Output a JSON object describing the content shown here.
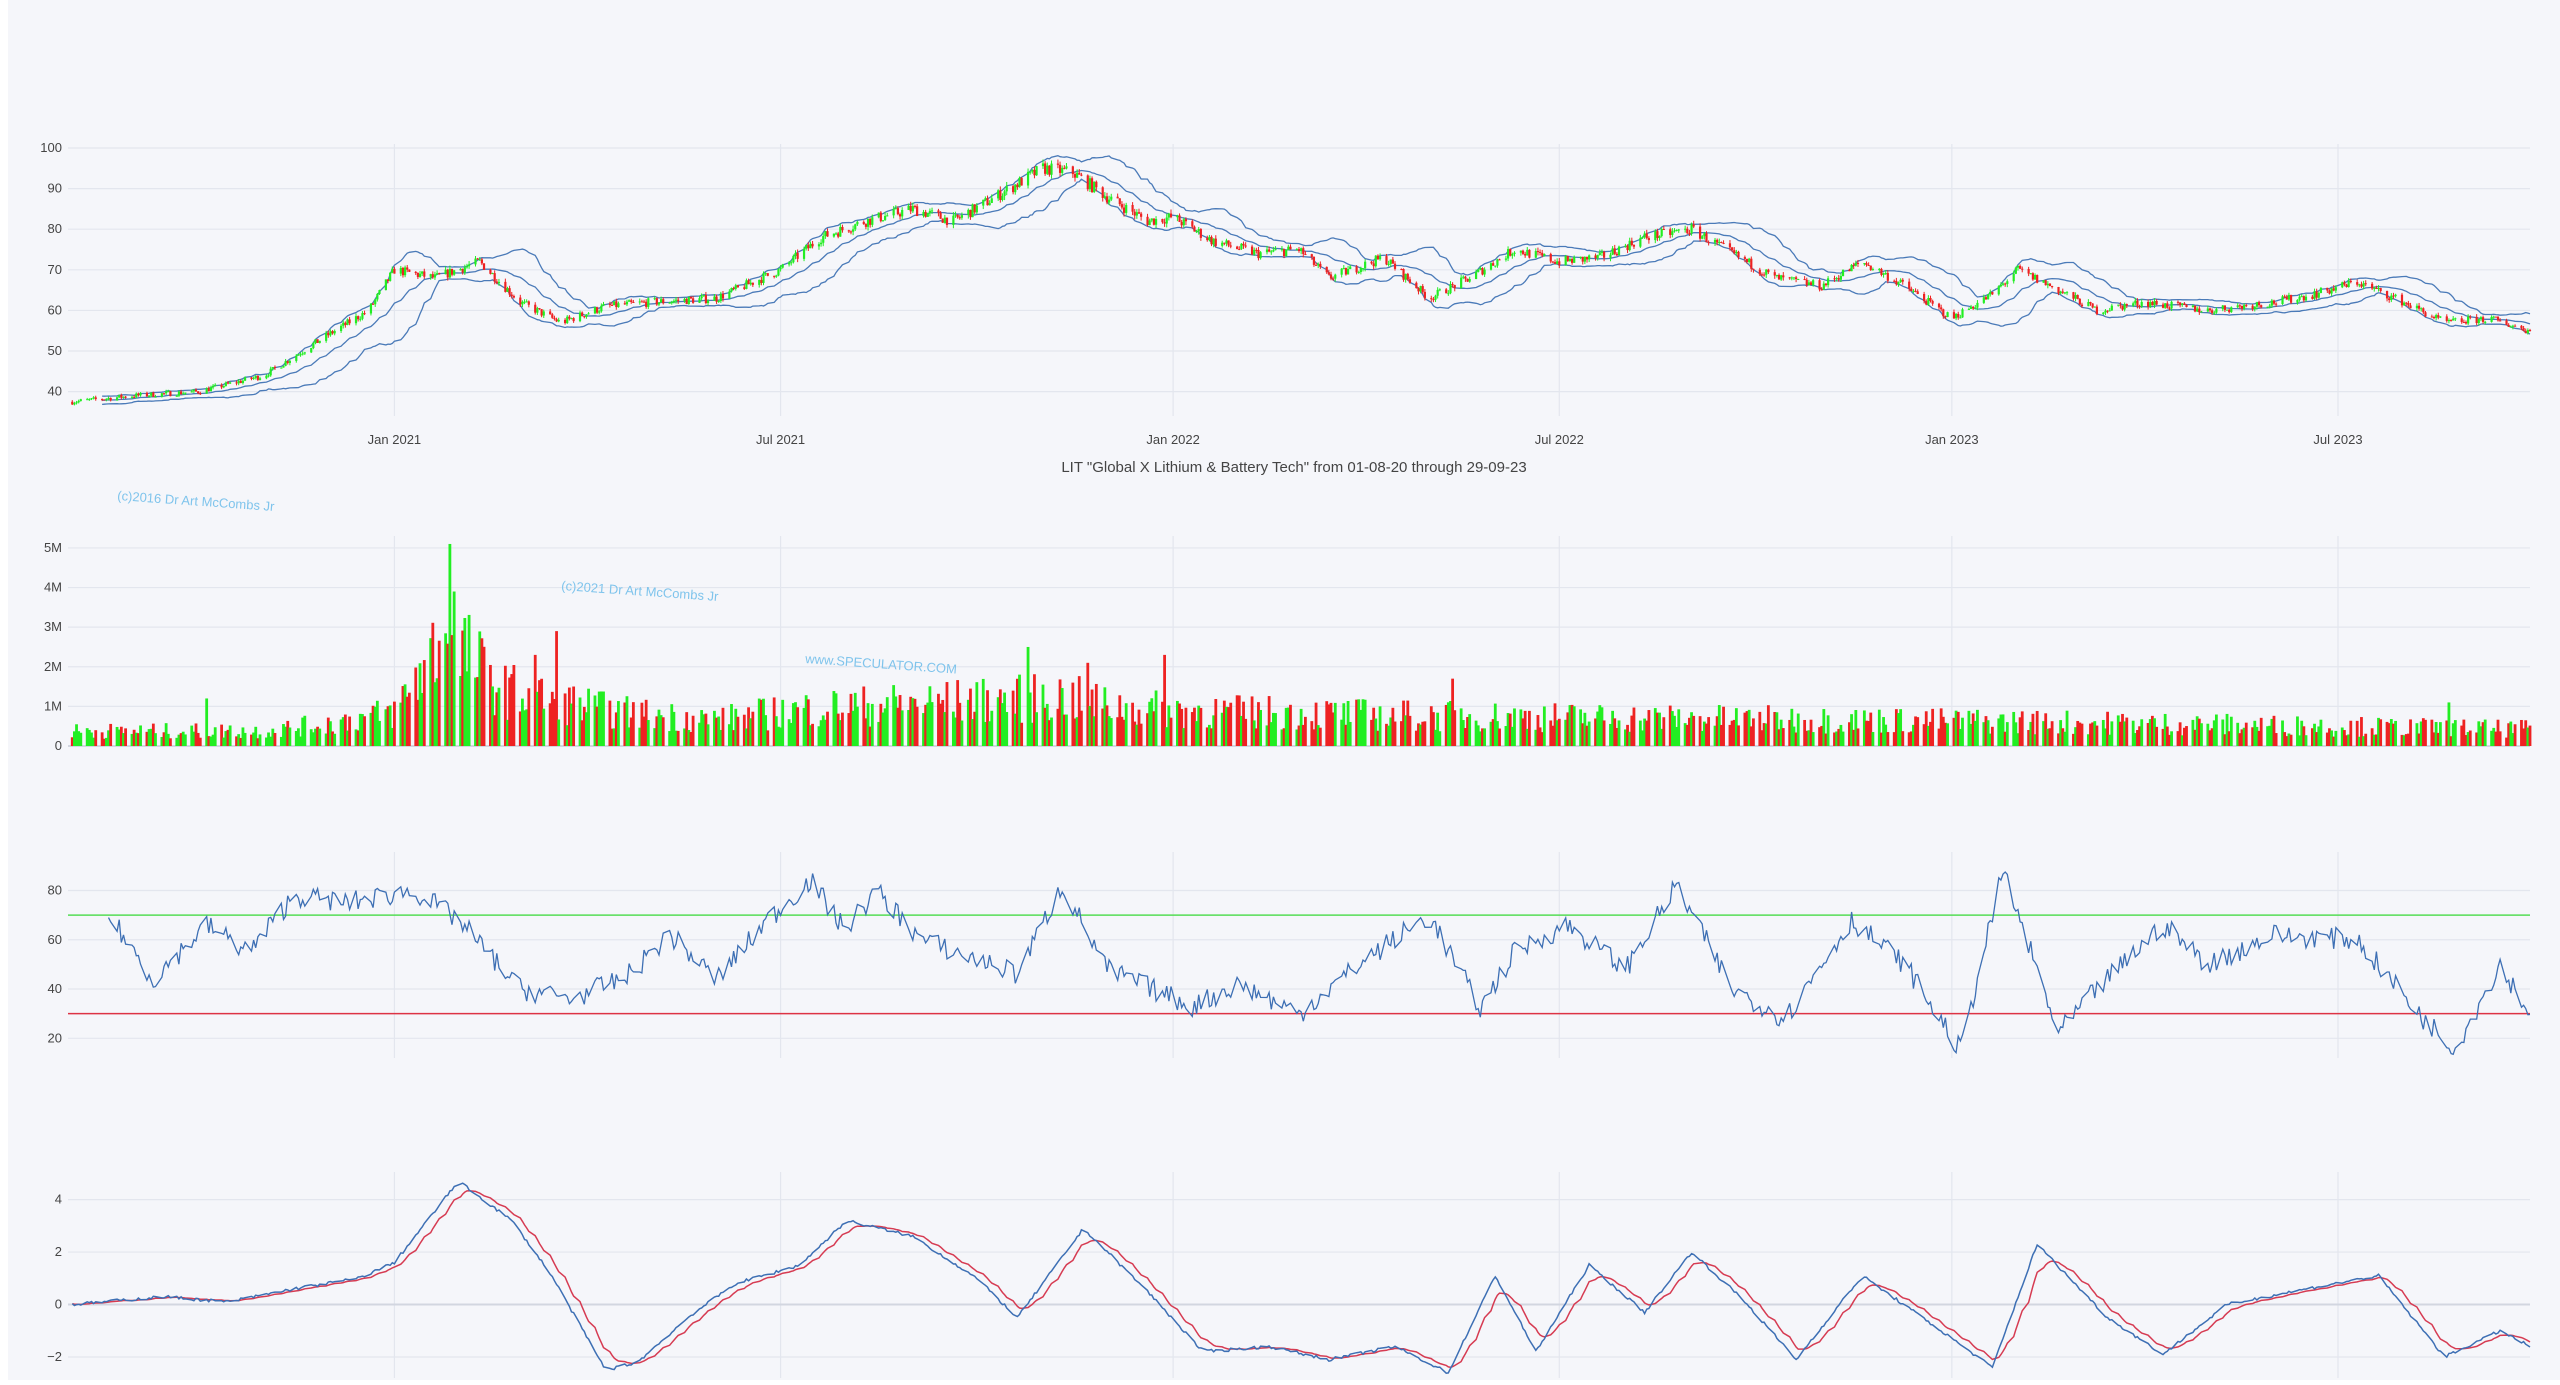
{
  "chart_data": [
    {
      "panel": "price",
      "type": "candlestick",
      "title": "LIT \"Global X Lithium & Battery Tech\" from 01-08-20 through 29-09-23",
      "x_range": [
        "2020-08-01",
        "2023-09-29"
      ],
      "x_ticks": [
        {
          "date": "2021-01-01",
          "label": "Jan 2021"
        },
        {
          "date": "2021-07-01",
          "label": "Jul 2021"
        },
        {
          "date": "2022-01-01",
          "label": "Jan 2022"
        },
        {
          "date": "2022-07-01",
          "label": "Jul 2022"
        },
        {
          "date": "2023-01-01",
          "label": "Jan 2023"
        },
        {
          "date": "2023-07-01",
          "label": "Jul 2023"
        }
      ],
      "ylim": [
        34,
        100
      ],
      "y_ticks": [
        40,
        50,
        60,
        70,
        80,
        90,
        100
      ],
      "close_path": [
        [
          "2020-08-03",
          37.5
        ],
        [
          "2020-09-01",
          39
        ],
        [
          "2020-10-01",
          40
        ],
        [
          "2020-11-01",
          44
        ],
        [
          "2020-12-01",
          54
        ],
        [
          "2020-12-20",
          60
        ],
        [
          "2021-01-01",
          70
        ],
        [
          "2021-01-20",
          68
        ],
        [
          "2021-02-10",
          72
        ],
        [
          "2021-03-01",
          62
        ],
        [
          "2021-03-20",
          57
        ],
        [
          "2021-04-10",
          61
        ],
        [
          "2021-05-01",
          62
        ],
        [
          "2021-06-01",
          63
        ],
        [
          "2021-07-01",
          70
        ],
        [
          "2021-07-20",
          78
        ],
        [
          "2021-08-10",
          82
        ],
        [
          "2021-09-01",
          85
        ],
        [
          "2021-09-20",
          82
        ],
        [
          "2021-10-10",
          88
        ],
        [
          "2021-11-01",
          95
        ],
        [
          "2021-11-15",
          94
        ],
        [
          "2021-12-01",
          88
        ],
        [
          "2021-12-20",
          82
        ],
        [
          "2022-01-01",
          83
        ],
        [
          "2022-01-20",
          77
        ],
        [
          "2022-02-10",
          74
        ],
        [
          "2022-03-01",
          75
        ],
        [
          "2022-03-15",
          68
        ],
        [
          "2022-04-10",
          73
        ],
        [
          "2022-05-01",
          63
        ],
        [
          "2022-05-20",
          68
        ],
        [
          "2022-06-10",
          75
        ],
        [
          "2022-07-01",
          72
        ],
        [
          "2022-07-20",
          73
        ],
        [
          "2022-08-10",
          78
        ],
        [
          "2022-09-01",
          80
        ],
        [
          "2022-09-20",
          74
        ],
        [
          "2022-10-10",
          68
        ],
        [
          "2022-11-01",
          66
        ],
        [
          "2022-11-20",
          72
        ],
        [
          "2022-12-10",
          66
        ],
        [
          "2023-01-01",
          58
        ],
        [
          "2023-01-20",
          64
        ],
        [
          "2023-02-01",
          70
        ],
        [
          "2023-02-20",
          65
        ],
        [
          "2023-03-10",
          60
        ],
        [
          "2023-04-01",
          62
        ],
        [
          "2023-05-01",
          60
        ],
        [
          "2023-06-01",
          62
        ],
        [
          "2023-06-20",
          64
        ],
        [
          "2023-07-10",
          67
        ],
        [
          "2023-08-01",
          62
        ],
        [
          "2023-08-20",
          57
        ],
        [
          "2023-09-10",
          58
        ],
        [
          "2023-09-29",
          55
        ]
      ],
      "bollinger_bands": true
    },
    {
      "panel": "volume",
      "type": "bar",
      "ylim": [
        0,
        5200000
      ],
      "y_ticks": [
        {
          "v": 0,
          "label": "0"
        },
        {
          "v": 1000000,
          "label": "1M"
        },
        {
          "v": 2000000,
          "label": "2M"
        },
        {
          "v": 3000000,
          "label": "3M"
        },
        {
          "v": 4000000,
          "label": "4M"
        },
        {
          "v": 5000000,
          "label": "5M"
        }
      ],
      "volume_path": [
        [
          "2020-08-03",
          400000
        ],
        [
          "2020-11-01",
          400000
        ],
        [
          "2020-12-01",
          600000
        ],
        [
          "2021-01-01",
          900000
        ],
        [
          "2021-01-25",
          3000000
        ],
        [
          "2021-02-20",
          1500000
        ],
        [
          "2021-03-10",
          1300000
        ],
        [
          "2021-04-15",
          900000
        ],
        [
          "2021-06-01",
          700000
        ],
        [
          "2021-07-15",
          1000000
        ],
        [
          "2021-10-01",
          1200000
        ],
        [
          "2021-11-10",
          1300000
        ],
        [
          "2021-12-10",
          1000000
        ],
        [
          "2022-02-01",
          900000
        ],
        [
          "2022-05-01",
          800000
        ],
        [
          "2022-08-01",
          750000
        ],
        [
          "2022-11-01",
          700000
        ],
        [
          "2023-02-01",
          650000
        ],
        [
          "2023-06-01",
          550000
        ],
        [
          "2023-09-29",
          450000
        ]
      ],
      "volume_spikes": [
        [
          "2020-10-05",
          1200000
        ],
        [
          "2021-01-27",
          5100000
        ],
        [
          "2021-01-29",
          3900000
        ],
        [
          "2021-03-18",
          2900000
        ],
        [
          "2021-03-08",
          2300000
        ],
        [
          "2021-10-25",
          2500000
        ],
        [
          "2021-11-22",
          2100000
        ],
        [
          "2021-12-28",
          2300000
        ],
        [
          "2022-05-12",
          1700000
        ],
        [
          "2023-08-22",
          1100000
        ]
      ],
      "colors": {
        "up": "#22ee22",
        "down": "#ee2222"
      }
    },
    {
      "panel": "rsi",
      "type": "line",
      "ylim": [
        12,
        94
      ],
      "y_ticks": [
        20,
        40,
        60,
        80
      ],
      "levels": [
        {
          "value": 70,
          "color": "#55dd55"
        },
        {
          "value": 30,
          "color": "#dd3344"
        }
      ],
      "rsi_path": [
        [
          "2020-08-20",
          70
        ],
        [
          "2020-09-10",
          44
        ],
        [
          "2020-10-05",
          66
        ],
        [
          "2020-10-25",
          55
        ],
        [
          "2020-11-15",
          78
        ],
        [
          "2020-12-10",
          75
        ],
        [
          "2021-01-10",
          80
        ],
        [
          "2021-01-31",
          68
        ],
        [
          "2021-03-01",
          40
        ],
        [
          "2021-03-25",
          36
        ],
        [
          "2021-04-20",
          45
        ],
        [
          "2021-05-10",
          62
        ],
        [
          "2021-06-01",
          44
        ],
        [
          "2021-06-25",
          68
        ],
        [
          "2021-07-15",
          84
        ],
        [
          "2021-07-31",
          64
        ],
        [
          "2021-08-15",
          80
        ],
        [
          "2021-09-05",
          60
        ],
        [
          "2021-10-01",
          52
        ],
        [
          "2021-10-20",
          46
        ],
        [
          "2021-11-10",
          82
        ],
        [
          "2021-12-01",
          48
        ],
        [
          "2022-01-10",
          33
        ],
        [
          "2022-02-01",
          42
        ],
        [
          "2022-03-01",
          30
        ],
        [
          "2022-04-01",
          52
        ],
        [
          "2022-05-01",
          70
        ],
        [
          "2022-05-25",
          32
        ],
        [
          "2022-06-10",
          55
        ],
        [
          "2022-07-05",
          66
        ],
        [
          "2022-08-01",
          48
        ],
        [
          "2022-08-25",
          82
        ],
        [
          "2022-09-20",
          40
        ],
        [
          "2022-10-15",
          28
        ],
        [
          "2022-11-15",
          68
        ],
        [
          "2022-12-10",
          50
        ],
        [
          "2023-01-05",
          15
        ],
        [
          "2023-01-25",
          88
        ],
        [
          "2023-02-20",
          22
        ],
        [
          "2023-03-10",
          40
        ],
        [
          "2023-04-10",
          66
        ],
        [
          "2023-05-01",
          50
        ],
        [
          "2023-06-01",
          62
        ],
        [
          "2023-07-10",
          60
        ],
        [
          "2023-08-10",
          28
        ],
        [
          "2023-08-25",
          16
        ],
        [
          "2023-09-15",
          50
        ],
        [
          "2023-09-29",
          30
        ]
      ],
      "color": "#3d6fb4"
    },
    {
      "panel": "macd",
      "type": "line",
      "ylim": [
        -2.8,
        4.9
      ],
      "y_ticks": [
        {
          "v": -2,
          "label": "−2"
        },
        {
          "v": 0,
          "label": "0"
        },
        {
          "v": 2,
          "label": "2"
        },
        {
          "v": 4,
          "label": "4"
        }
      ],
      "macd_path": [
        [
          "2020-08-03",
          0.0
        ],
        [
          "2020-09-15",
          0.3
        ],
        [
          "2020-10-15",
          0.1
        ],
        [
          "2020-11-15",
          0.6
        ],
        [
          "2020-12-15",
          1.0
        ],
        [
          "2021-01-01",
          1.6
        ],
        [
          "2021-01-31",
          4.7
        ],
        [
          "2021-02-25",
          3.2
        ],
        [
          "2021-03-15",
          1.2
        ],
        [
          "2021-04-10",
          -2.5
        ],
        [
          "2021-04-25",
          -2.2
        ],
        [
          "2021-05-20",
          -0.4
        ],
        [
          "2021-06-10",
          0.8
        ],
        [
          "2021-07-10",
          1.5
        ],
        [
          "2021-08-01",
          3.2
        ],
        [
          "2021-09-01",
          2.6
        ],
        [
          "2021-10-01",
          1.0
        ],
        [
          "2021-10-20",
          -0.5
        ],
        [
          "2021-11-20",
          2.9
        ],
        [
          "2021-12-20",
          0.5
        ],
        [
          "2022-01-15",
          -1.8
        ],
        [
          "2022-02-15",
          -1.6
        ],
        [
          "2022-03-15",
          -2.1
        ],
        [
          "2022-04-15",
          -1.6
        ],
        [
          "2022-05-10",
          -2.6
        ],
        [
          "2022-06-01",
          1.1
        ],
        [
          "2022-06-20",
          -1.8
        ],
        [
          "2022-07-15",
          1.5
        ],
        [
          "2022-08-10",
          -0.3
        ],
        [
          "2022-09-01",
          2.0
        ],
        [
          "2022-09-25",
          0.2
        ],
        [
          "2022-10-20",
          -2.1
        ],
        [
          "2022-11-20",
          1.1
        ],
        [
          "2022-12-20",
          -0.6
        ],
        [
          "2023-01-20",
          -2.4
        ],
        [
          "2023-02-10",
          2.3
        ],
        [
          "2023-03-15",
          -0.5
        ],
        [
          "2023-04-10",
          -1.9
        ],
        [
          "2023-05-10",
          0.0
        ],
        [
          "2023-06-10",
          0.5
        ],
        [
          "2023-07-20",
          1.1
        ],
        [
          "2023-08-20",
          -2.0
        ],
        [
          "2023-09-15",
          -1.0
        ],
        [
          "2023-09-29",
          -1.6
        ]
      ],
      "colors": {
        "macd": "#3d6fb4",
        "signal": "#d63b52"
      }
    }
  ],
  "watermarks": [
    "(c)2016 Dr Art McCombs Jr",
    "(c)2021 Dr Art McCombs Jr",
    "www.SPECULATOR.COM"
  ]
}
